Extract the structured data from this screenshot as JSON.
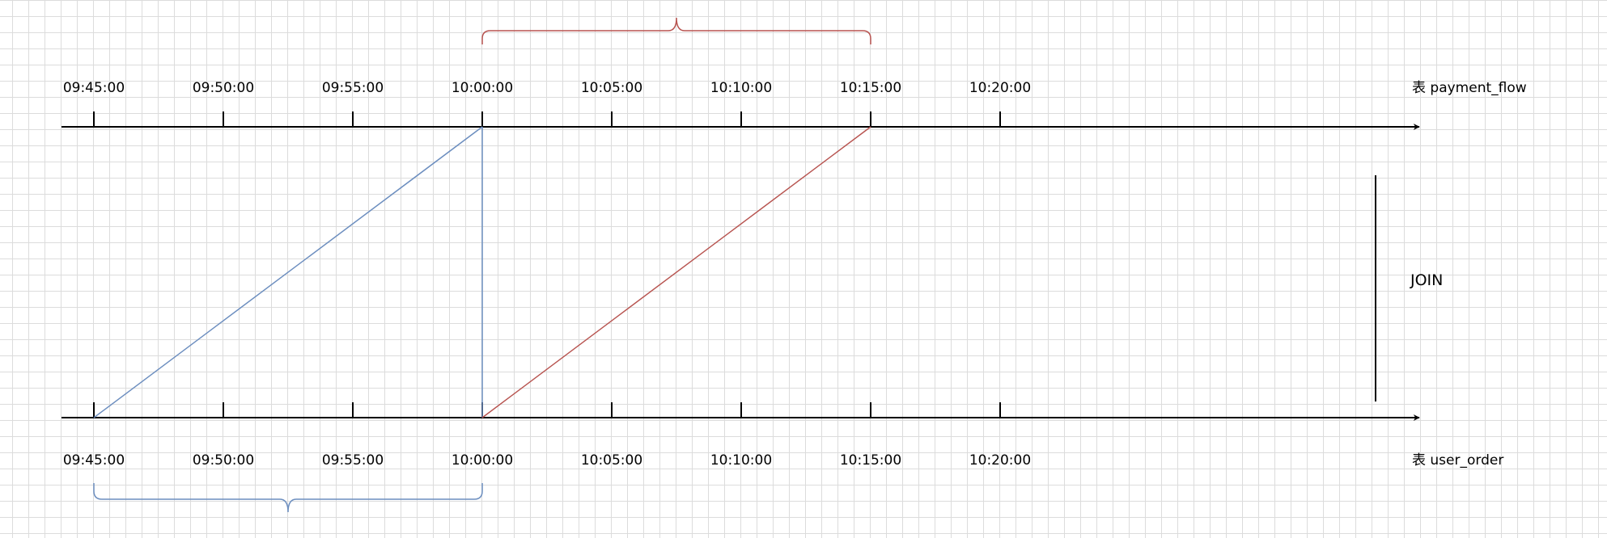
{
  "diagram": {
    "top_axis": {
      "title": "表 payment_flow",
      "ticks": [
        "09:45:00",
        "09:50:00",
        "09:55:00",
        "10:00:00",
        "10:05:00",
        "10:10:00",
        "10:15:00",
        "10:20:00"
      ]
    },
    "bottom_axis": {
      "title": "表 user_order",
      "ticks": [
        "09:45:00",
        "09:50:00",
        "09:55:00",
        "10:00:00",
        "10:05:00",
        "10:10:00",
        "10:15:00",
        "10:20:00"
      ]
    },
    "join_label": "JOIN",
    "links": [
      {
        "from_bottom": "09:45:00",
        "to_top": "10:00:00",
        "color": "blue"
      },
      {
        "from_bottom": "10:00:00",
        "to_top": "10:00:00",
        "color": "blue"
      },
      {
        "from_bottom": "10:00:00",
        "to_top": "10:15:00",
        "color": "red"
      }
    ],
    "top_brace": {
      "start": "10:00:00",
      "end": "10:15:00",
      "color": "red"
    },
    "bottom_brace": {
      "start": "09:45:00",
      "end": "10:00:00",
      "color": "blue"
    },
    "colors": {
      "axis": "#000000",
      "blue": "#6c8ebf",
      "red": "#b85450"
    }
  }
}
